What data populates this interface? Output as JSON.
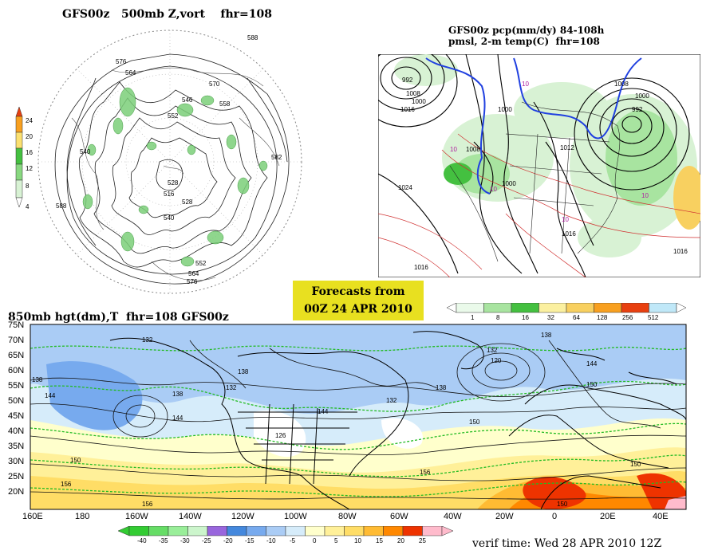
{
  "polar_panel": {
    "title": "GFS00z   500mb Z,vort    fhr=108",
    "colorbar_labels": [
      "24",
      "20",
      "16",
      "12",
      "8",
      "4"
    ],
    "contour_labels": [
      "588",
      "576",
      "564",
      "552",
      "540",
      "528",
      "516",
      "528",
      "540",
      "552",
      "564",
      "576",
      "588",
      "570",
      "582",
      "558",
      "546"
    ]
  },
  "pcp_panel": {
    "title_line1": "GFS00z pcp(mm/dy) 84-108h",
    "title_line2": "pmsl, 2-m temp(C)  fhr=108",
    "pressure_labels": [
      "992",
      "1008",
      "1000",
      "1016",
      "1024",
      "1008",
      "1000",
      "1012",
      "992",
      "1008",
      "1000",
      "1016",
      "1016",
      "1016",
      "1000"
    ],
    "temp_labels": [
      "10",
      "10",
      "10",
      "10",
      "10"
    ],
    "colorbar_labels": [
      "1",
      "8",
      "16",
      "32",
      "64",
      "128",
      "256",
      "512"
    ],
    "colorbar_colors": [
      "#eafaea",
      "#a8e4a0",
      "#44c040",
      "#fbf0a0",
      "#f8d060",
      "#f8a020",
      "#e84010",
      "#c0e8f8"
    ]
  },
  "forecast_box": {
    "line1": "Forecasts from",
    "line2": "00Z 24 APR 2010"
  },
  "h850_panel": {
    "title": "850mb hgt(dm),T  fhr=108 GFS00z",
    "lat_labels": [
      "75N",
      "70N",
      "65N",
      "60N",
      "55N",
      "50N",
      "45N",
      "40N",
      "35N",
      "30N",
      "25N",
      "20N"
    ],
    "lon_labels": [
      "160E",
      "180",
      "160W",
      "140W",
      "120W",
      "100W",
      "80W",
      "60W",
      "40W",
      "20W",
      "0",
      "20E",
      "40E"
    ],
    "height_labels": [
      "132",
      "138",
      "144",
      "138",
      "132",
      "138",
      "144",
      "150",
      "156",
      "126",
      "132",
      "144",
      "138",
      "150",
      "156",
      "132",
      "120",
      "138",
      "144",
      "150",
      "150",
      "156",
      "150"
    ],
    "colorbar_labels": [
      "-40",
      "-35",
      "-30",
      "-25",
      "-20",
      "-15",
      "-10",
      "-5",
      "0",
      "5",
      "10",
      "15",
      "20",
      "25"
    ],
    "colorbar_colors": [
      "#33cc33",
      "#66dd66",
      "#99ee99",
      "#ccf5cc",
      "#9966dd",
      "#4488dd",
      "#77aaee",
      "#aaccf5",
      "#d6ecfa",
      "#ffffcc",
      "#fff099",
      "#ffdd66",
      "#ffbb33",
      "#ff8800",
      "#ee3300",
      "#ffbbcc"
    ]
  },
  "verif_time": "verif time: Wed 28 APR 2010 12Z"
}
